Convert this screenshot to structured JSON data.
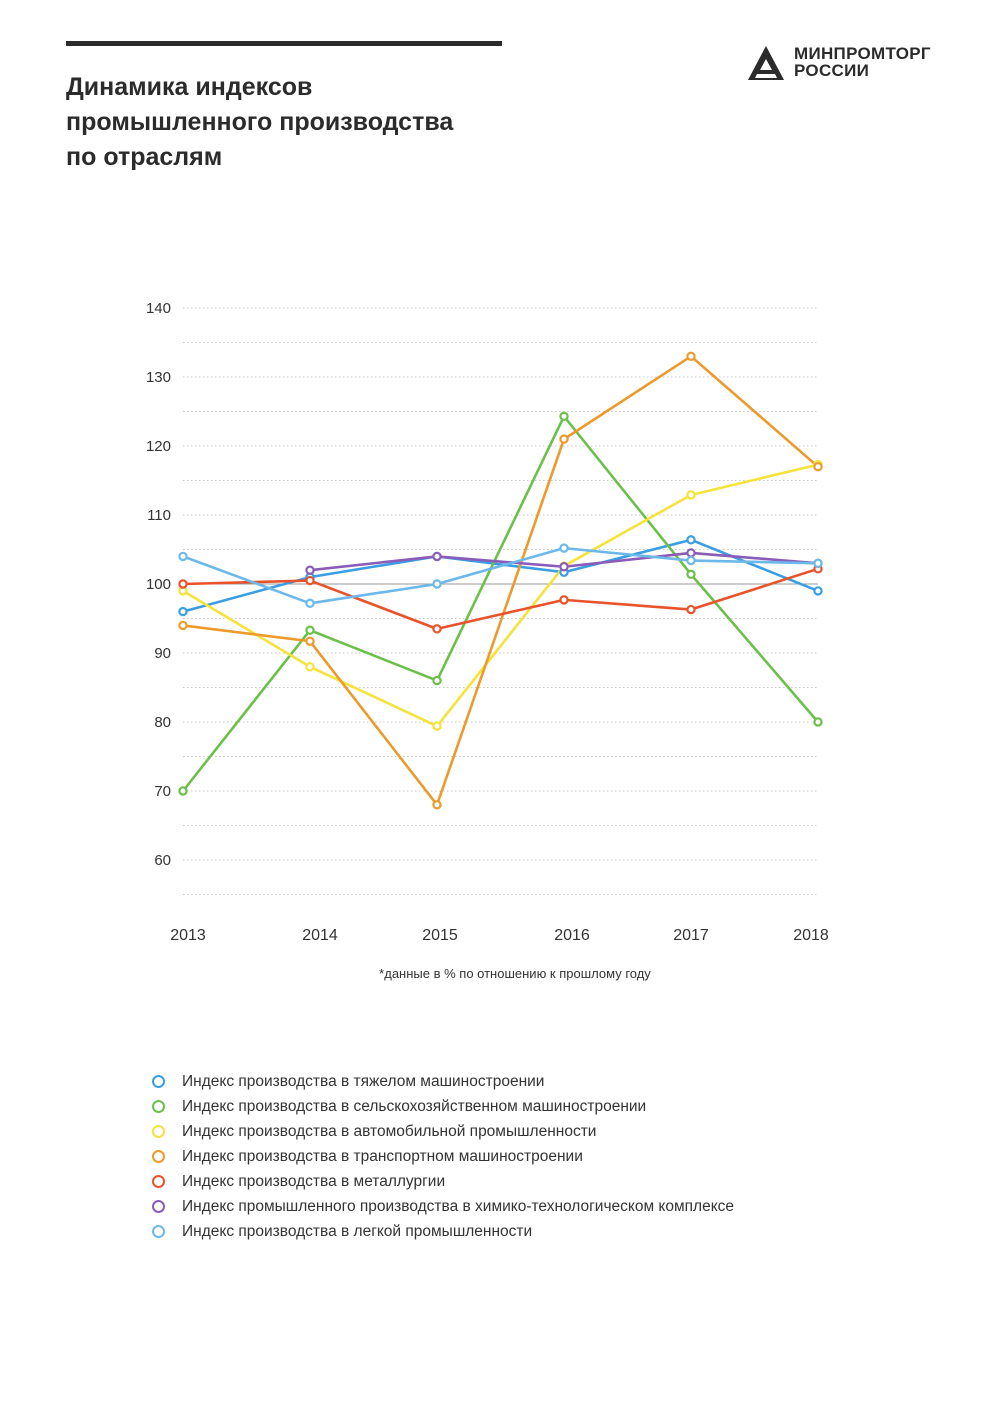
{
  "header": {
    "title": "Динамика индексов\nпромышленного производства\nпо отраслям",
    "logo_line1": "МИНПРОМТОРГ",
    "logo_line2": "РОССИИ"
  },
  "note": "*данные в % по отношению к прошлому году",
  "chart_data": {
    "type": "line",
    "title": "Динамика индексов промышленного производства по отраслям",
    "x": [
      "2013",
      "2014",
      "2015",
      "2016",
      "2017",
      "2018"
    ],
    "ylim": [
      55,
      140
    ],
    "yticks": [
      140,
      130,
      120,
      110,
      100,
      90,
      80,
      70,
      60
    ],
    "reference_line": 100,
    "grid": true,
    "legend_position": "bottom",
    "series": [
      {
        "name": "Индекс производства в тяжелом машиностроении",
        "color": "#3a9ee4",
        "values": [
          96,
          101,
          104,
          101.7,
          106.4,
          99
        ]
      },
      {
        "name": "Индекс производства в сельскохозяйственном машиностроении",
        "color": "#6cc04a",
        "values": [
          70,
          93.3,
          86,
          124.3,
          101.4,
          80
        ]
      },
      {
        "name": "Индекс производства в автомобильной промышленности",
        "color": "#f5e23a",
        "values": [
          99,
          88,
          79.4,
          102.6,
          112.9,
          117.3
        ]
      },
      {
        "name": "Индекс производства в транспортном машиностроении",
        "color": "#ec9a2c",
        "values": [
          94,
          91.7,
          68,
          121,
          133,
          117
        ]
      },
      {
        "name": "Индекс производства в металлургии",
        "color": "#e9532b",
        "values": [
          100,
          100.5,
          93.5,
          97.7,
          96.3,
          102.2
        ]
      },
      {
        "name": "Индекс промышленного производства в химико-технологическом комплексе",
        "color": "#8a5cb8",
        "values": [
          null,
          102,
          104,
          102.5,
          104.5,
          103
        ]
      },
      {
        "name": "Индекс производства  в  легкой промышленности",
        "color": "#6db8ea",
        "values": [
          104,
          97.2,
          100,
          105.2,
          103.4,
          103
        ]
      }
    ]
  }
}
